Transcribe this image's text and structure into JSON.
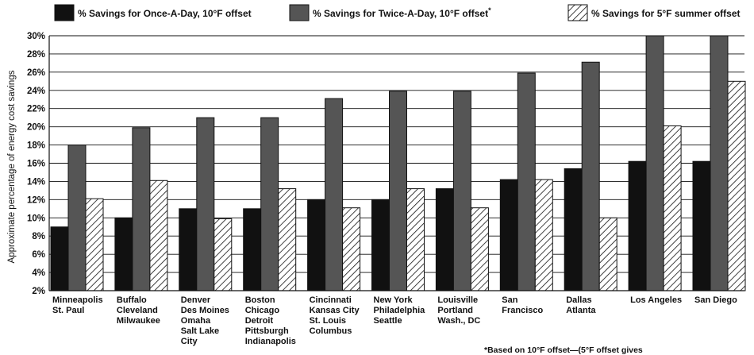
{
  "chart_data": {
    "type": "bar",
    "ylabel": "Approximate percentage of energy cost savings",
    "ylim": [
      2,
      30
    ],
    "yticks": [
      2,
      4,
      6,
      8,
      10,
      12,
      14,
      16,
      18,
      20,
      22,
      24,
      26,
      28,
      30
    ],
    "ytick_labels": [
      "2%",
      "4%",
      "6%",
      "8%",
      "10%",
      "12%",
      "14%",
      "16%",
      "18%",
      "20%",
      "22%",
      "24%",
      "26%",
      "28%",
      "30%"
    ],
    "grid": true,
    "legend_position": "top",
    "categories": [
      [
        "Minneapolis",
        "St. Paul"
      ],
      [
        "Buffalo",
        "Cleveland",
        "Milwaukee"
      ],
      [
        "Denver",
        "Des Moines",
        "Omaha",
        "Salt Lake",
        "City"
      ],
      [
        "Boston",
        "Chicago",
        "Detroit",
        "Pittsburgh",
        "Indianapolis"
      ],
      [
        "Cincinnati",
        "Kansas City",
        "St. Louis",
        "Columbus"
      ],
      [
        "New York",
        "Philadelphia",
        "Seattle"
      ],
      [
        "Louisville",
        "Portland",
        "Wash., DC"
      ],
      [
        "San",
        "Francisco"
      ],
      [
        "Dallas",
        "Atlanta"
      ],
      [
        "Los Angeles"
      ],
      [
        "San Diego"
      ]
    ],
    "series": [
      {
        "name": "% Savings for Once-A-Day, 10°F offset",
        "pattern": "solid-black",
        "values": [
          9,
          10,
          11,
          11,
          12,
          12,
          13.2,
          14.2,
          15.4,
          16.2,
          16.2
        ]
      },
      {
        "name": "% Savings for Twice-A-Day, 10°F offset",
        "name_suffix": "*",
        "pattern": "solid-gray",
        "values": [
          18,
          19.9,
          21,
          21,
          23.1,
          23.9,
          23.9,
          25.9,
          27.1,
          30,
          30
        ]
      },
      {
        "name": "% Savings for 5°F summer offset",
        "pattern": "hatched",
        "values": [
          12.1,
          14.1,
          9.9,
          13.2,
          11.1,
          13.2,
          11.1,
          14.2,
          10,
          20.1,
          25
        ]
      }
    ],
    "footnote": "*Based on 10°F offset—(5°F offset gives"
  },
  "colors": {
    "series_once": "#111111",
    "series_twice": "#555555",
    "series_hatch_line": "#111111",
    "axis": "#111111"
  }
}
